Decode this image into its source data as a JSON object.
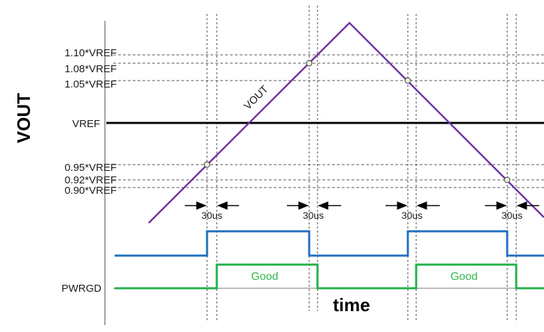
{
  "diagram": {
    "y_axis_label": "VOUT",
    "x_axis_label": "time",
    "vref_label": "VREF",
    "thresholds": [
      "1.10*VREF",
      "1.08*VREF",
      "1.05*VREF",
      "0.95*VREF",
      "0.92*VREF",
      "0.90*VREF"
    ],
    "vout_trace_label": "VOUT",
    "pwrgd_label": "PWRGD",
    "delay_labels": [
      "30us",
      "30us",
      "30us",
      "30us"
    ],
    "good_labels": [
      "Good",
      "Good"
    ],
    "colors": {
      "vout": "#7030a0",
      "vref": "#000000",
      "comparator": "#1f6fbf",
      "pwrgd": "#22b04a",
      "dashed": "#555555"
    }
  }
}
